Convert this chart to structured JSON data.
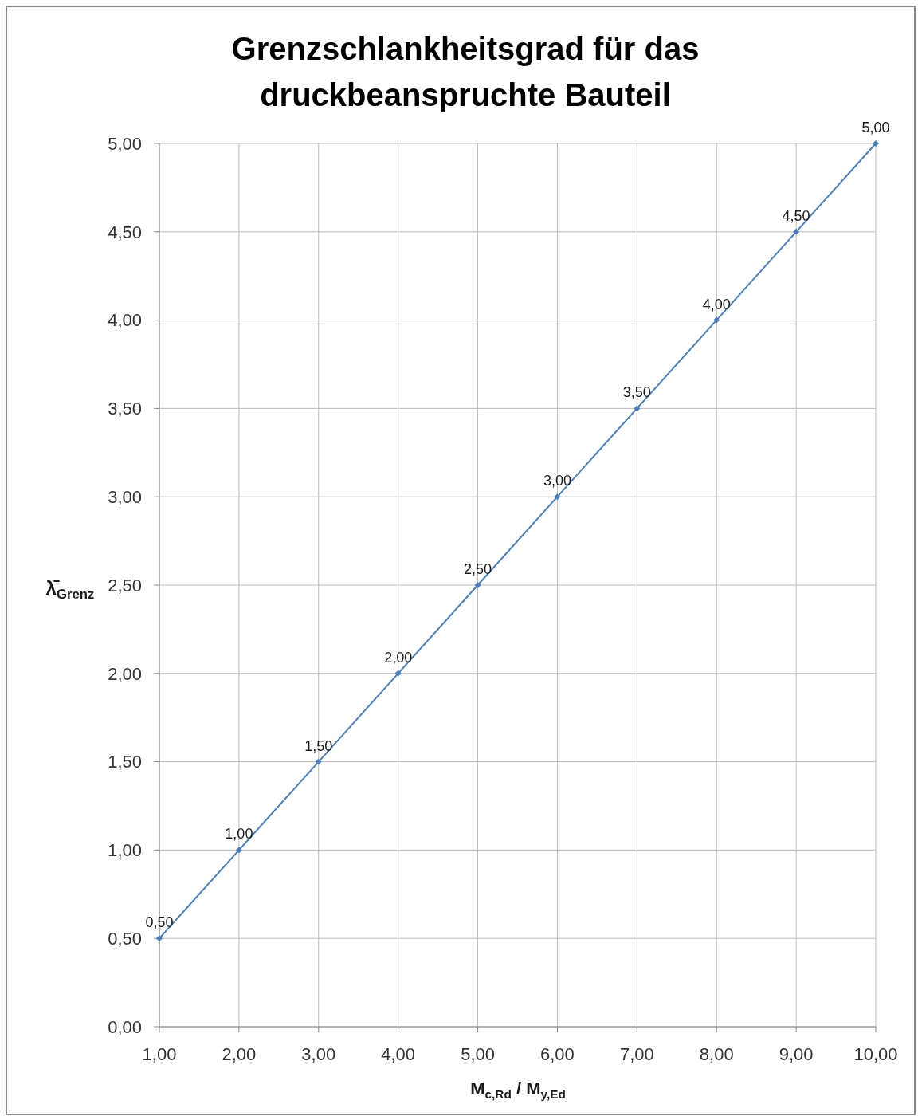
{
  "chart_data": {
    "type": "line",
    "title": "Grenzschlankheitsgrad für das druckbeanspruchte Bauteil",
    "xlabel": "M$_{c,Rd}$ / M$_{y,Ed}$",
    "ylabel": "λ̄$_{Grenz}$",
    "x": [
      1,
      2,
      3,
      4,
      5,
      6,
      7,
      8,
      9,
      10
    ],
    "series": [
      {
        "color": "#4a7ebb",
        "values": [
          0.5,
          1,
          1.5,
          2,
          2.5,
          3,
          3.5,
          4,
          4.5,
          5
        ],
        "value_labels": [
          "0,50",
          "1,00",
          "1,50",
          "2,00",
          "2,50",
          "3,00",
          "3,50",
          "4,00",
          "4,50",
          "5,00"
        ]
      }
    ],
    "xlim": [
      1,
      10
    ],
    "ylim": [
      0,
      5
    ],
    "xticks": [
      {
        "value": 1,
        "label": "1,00"
      },
      {
        "value": 2,
        "label": "2,00"
      },
      {
        "value": 3,
        "label": "3,00"
      },
      {
        "value": 4,
        "label": "4,00"
      },
      {
        "value": 5,
        "label": "5,00"
      },
      {
        "value": 6,
        "label": "6,00"
      },
      {
        "value": 7,
        "label": "7,00"
      },
      {
        "value": 8,
        "label": "8,00"
      },
      {
        "value": 9,
        "label": "9,00"
      },
      {
        "value": 10,
        "label": "10,00"
      }
    ],
    "yticks": [
      {
        "value": 0,
        "label": "0,00"
      },
      {
        "value": 0.5,
        "label": "0,50"
      },
      {
        "value": 1,
        "label": "1,00"
      },
      {
        "value": 1.5,
        "label": "1,50"
      },
      {
        "value": 2,
        "label": "2,00"
      },
      {
        "value": 2.5,
        "label": "2,50"
      },
      {
        "value": 3,
        "label": "3,00"
      },
      {
        "value": 3.5,
        "label": "3,50"
      },
      {
        "value": 4,
        "label": "4,00"
      },
      {
        "value": 4.5,
        "label": "4,50"
      },
      {
        "value": 5,
        "label": "5,00"
      }
    ],
    "grid": true,
    "marker": "diamond",
    "line_style": "solid"
  }
}
